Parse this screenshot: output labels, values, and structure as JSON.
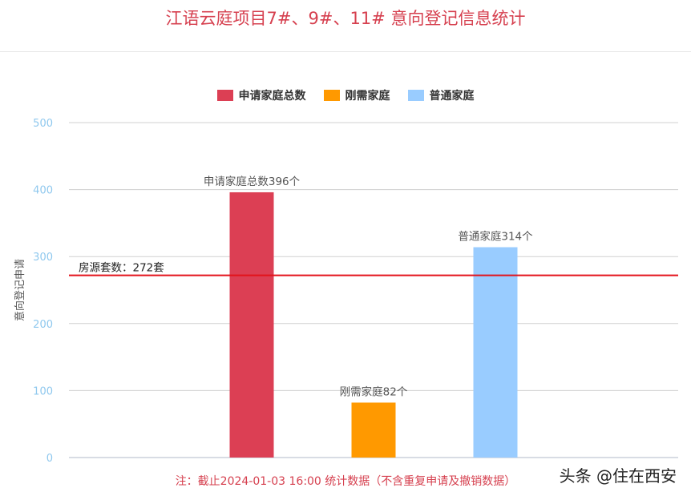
{
  "title": "江语云庭项目7#、9#、11# 意向登记信息统计",
  "footnote": "注：截止2024-01-03 16:00 统计数据（不含重复申请及撤销数据）",
  "watermark": "头条 @住在西安",
  "reference_line": {
    "label": "房源套数：272套",
    "value": 272,
    "color": "#e3131b"
  },
  "colors": {
    "title": "#d6404f",
    "tick": "#8fc8ee",
    "grid": "#d0d0d0"
  },
  "chart_data": {
    "type": "bar",
    "title": "江语云庭项目7#、9#、11# 意向登记信息统计",
    "xlabel": "",
    "ylabel": "意向登记申请",
    "ylim": [
      0,
      500
    ],
    "yticks": [
      0,
      100,
      200,
      300,
      400,
      500
    ],
    "grid": true,
    "legend_position": "top",
    "series": [
      {
        "name": "申请家庭总数",
        "color": "#dc3f54",
        "value": 396,
        "label": "申请家庭总数396个"
      },
      {
        "name": "刚需家庭",
        "color": "#ff9900",
        "value": 82,
        "label": "刚需家庭82个"
      },
      {
        "name": "普通家庭",
        "color": "#99ccff",
        "value": 314,
        "label": "普通家庭314个"
      }
    ]
  }
}
